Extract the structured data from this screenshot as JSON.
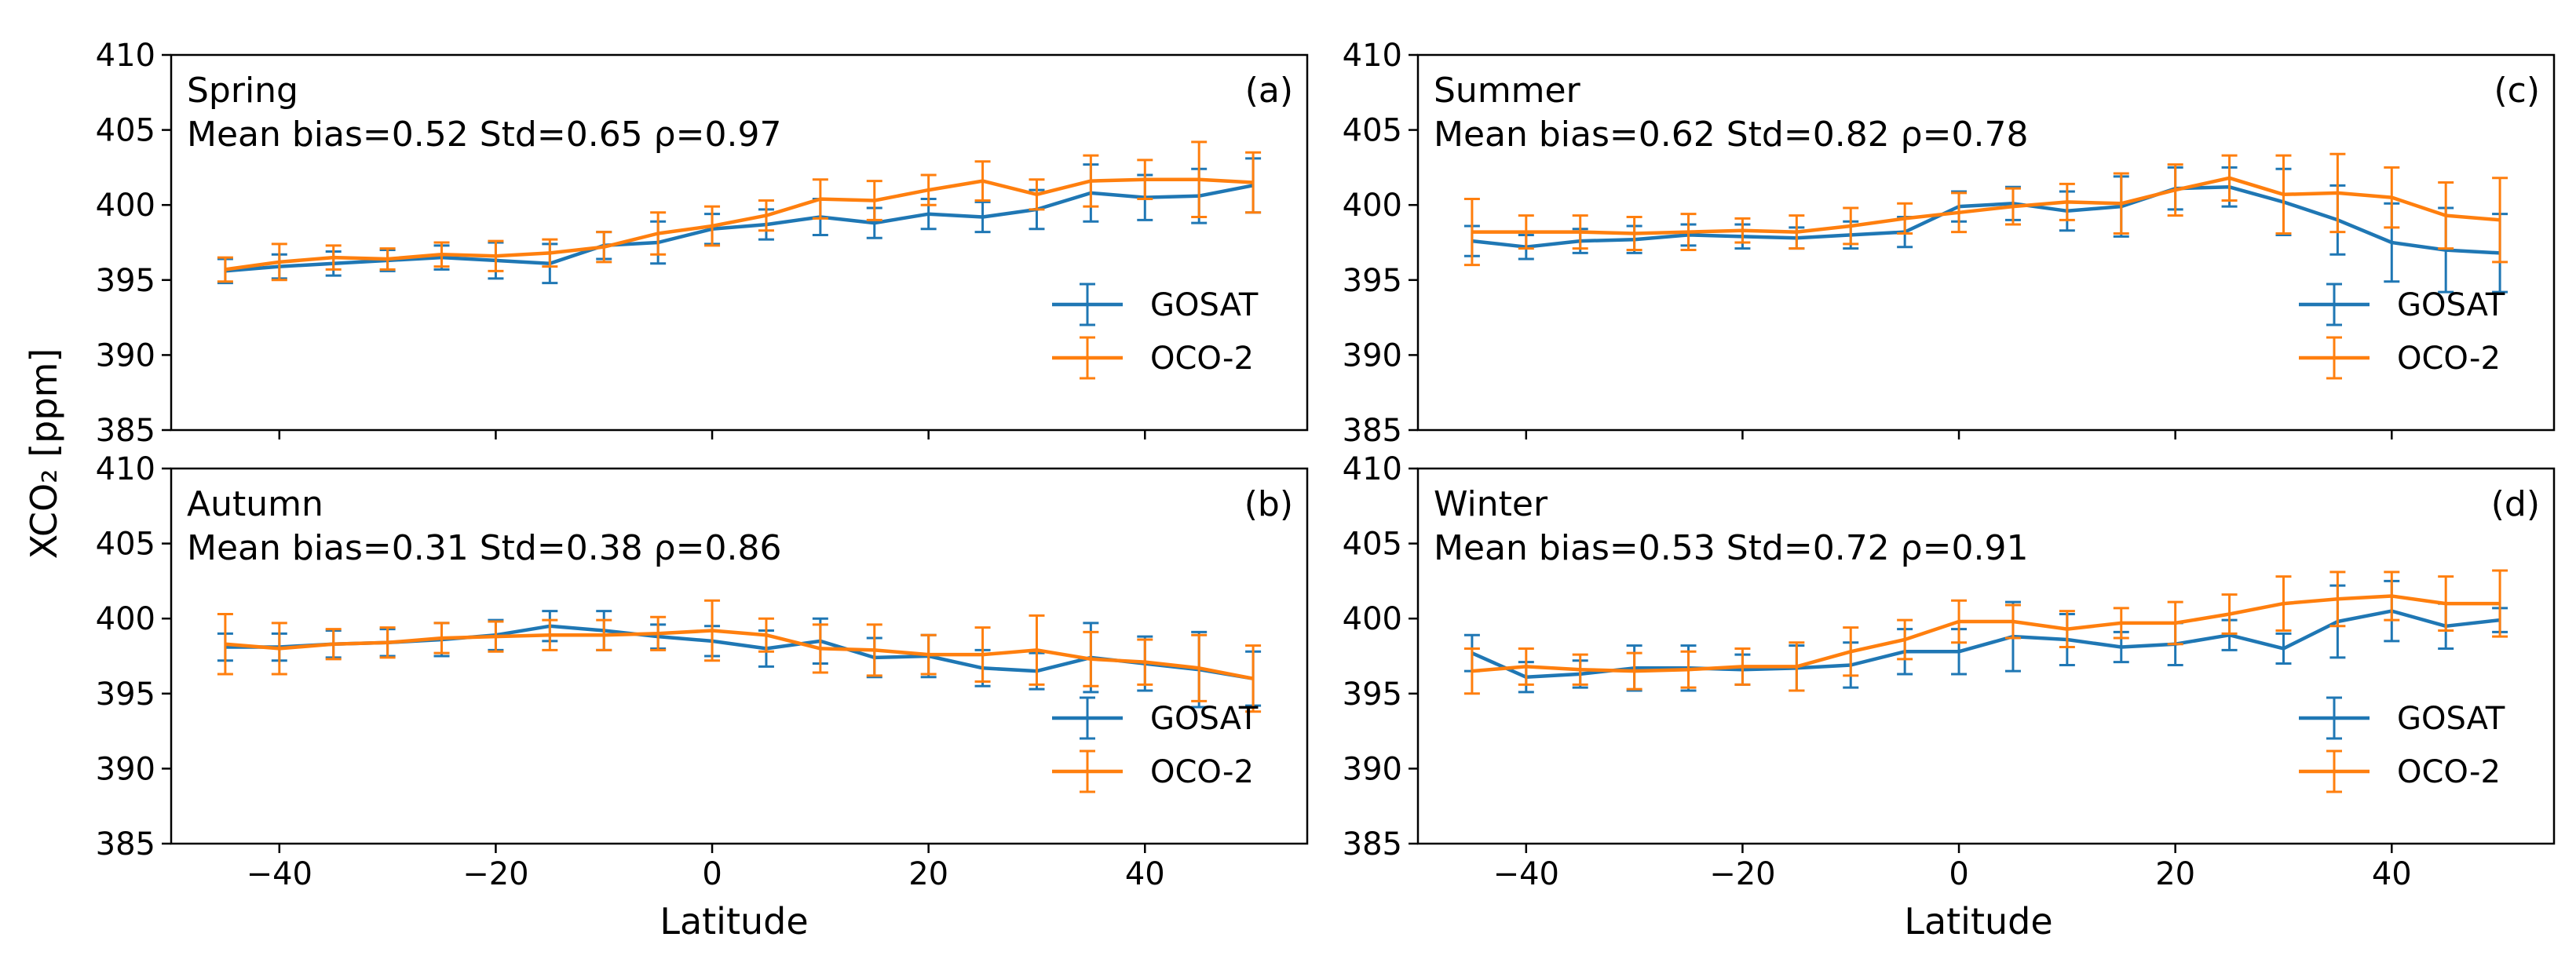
{
  "figure": {
    "ylabel": "XCO₂ [ppm]",
    "xlabel": "Latitude",
    "colors": {
      "GOSAT": "#1f77b4",
      "OCO-2": "#ff7f0e"
    }
  },
  "chart_data": [
    {
      "type": "line",
      "panel": "(a)",
      "season": "Spring",
      "stats": "Mean bias=0.52 Std=0.65 ρ=0.97",
      "xlim": [
        -50,
        55
      ],
      "ylim": [
        385,
        410
      ],
      "xticks": [
        -40,
        -20,
        0,
        20,
        40
      ],
      "yticks": [
        385,
        390,
        395,
        400,
        405,
        410
      ],
      "legend": "lower-right",
      "x": [
        -45,
        -40,
        -35,
        -30,
        -25,
        -20,
        -15,
        -10,
        -5,
        0,
        5,
        10,
        15,
        20,
        25,
        30,
        35,
        40,
        45,
        50
      ],
      "series": [
        {
          "name": "GOSAT",
          "values": [
            395.6,
            395.9,
            396.1,
            396.3,
            396.5,
            396.3,
            396.1,
            397.3,
            397.5,
            398.4,
            398.7,
            399.2,
            398.8,
            399.4,
            399.2,
            399.7,
            400.8,
            400.5,
            400.6,
            401.3
          ],
          "errors": [
            0.8,
            0.8,
            0.8,
            0.7,
            0.8,
            1.2,
            1.3,
            0.9,
            1.4,
            1.0,
            1.0,
            1.2,
            1.0,
            1.0,
            1.0,
            1.3,
            1.9,
            1.5,
            1.8,
            1.8
          ]
        },
        {
          "name": "OCO-2",
          "values": [
            395.7,
            396.2,
            396.5,
            396.4,
            396.7,
            396.6,
            396.8,
            397.2,
            398.1,
            398.6,
            399.3,
            400.4,
            400.3,
            401.0,
            401.6,
            400.7,
            401.6,
            401.7,
            401.7,
            401.5
          ],
          "errors": [
            0.8,
            1.2,
            0.8,
            0.7,
            0.8,
            1.0,
            0.9,
            1.0,
            1.4,
            1.3,
            1.0,
            1.3,
            1.3,
            1.0,
            1.3,
            1.0,
            1.7,
            1.3,
            2.5,
            2.0
          ]
        }
      ]
    },
    {
      "type": "line",
      "panel": "(c)",
      "season": "Summer",
      "stats": "Mean bias=0.62 Std=0.82 ρ=0.78",
      "xlim": [
        -50,
        55
      ],
      "ylim": [
        385,
        410
      ],
      "xticks": [
        -40,
        -20,
        0,
        20,
        40
      ],
      "yticks": [
        385,
        390,
        395,
        400,
        405,
        410
      ],
      "legend": "lower-right",
      "x": [
        -45,
        -40,
        -35,
        -30,
        -25,
        -20,
        -15,
        -10,
        -5,
        0,
        5,
        10,
        15,
        20,
        25,
        30,
        35,
        40,
        45,
        50
      ],
      "series": [
        {
          "name": "GOSAT",
          "values": [
            397.6,
            397.2,
            397.6,
            397.7,
            398.0,
            397.9,
            397.8,
            398.0,
            398.2,
            399.9,
            400.1,
            399.6,
            399.9,
            401.1,
            401.2,
            400.2,
            399.0,
            397.5,
            397.0,
            396.8
          ],
          "errors": [
            1.0,
            0.8,
            0.8,
            0.9,
            0.7,
            0.8,
            0.7,
            0.9,
            1.0,
            1.0,
            1.1,
            1.3,
            2.0,
            1.4,
            1.3,
            2.2,
            2.3,
            2.6,
            2.8,
            2.6
          ]
        },
        {
          "name": "OCO-2",
          "values": [
            398.2,
            398.2,
            398.2,
            398.1,
            398.2,
            398.3,
            398.2,
            398.6,
            399.1,
            399.5,
            399.9,
            400.2,
            400.1,
            401.0,
            401.8,
            400.7,
            400.8,
            400.5,
            399.3,
            399.0
          ],
          "errors": [
            2.2,
            1.1,
            1.1,
            1.1,
            1.2,
            0.8,
            1.1,
            1.2,
            1.0,
            1.3,
            1.2,
            1.2,
            2.0,
            1.7,
            1.5,
            2.6,
            2.6,
            2.0,
            2.2,
            2.8
          ]
        }
      ]
    },
    {
      "type": "line",
      "panel": "(b)",
      "season": "Autumn",
      "stats": "Mean bias=0.31 Std=0.38 ρ=0.86",
      "xlim": [
        -50,
        55
      ],
      "ylim": [
        385,
        410
      ],
      "xticks": [
        -40,
        -20,
        0,
        20,
        40
      ],
      "yticks": [
        385,
        390,
        395,
        400,
        405,
        410
      ],
      "legend": "lower-right",
      "x": [
        -45,
        -40,
        -35,
        -30,
        -25,
        -20,
        -15,
        -10,
        -5,
        0,
        5,
        10,
        15,
        20,
        25,
        30,
        35,
        40,
        45,
        50
      ],
      "series": [
        {
          "name": "GOSAT",
          "values": [
            398.1,
            398.1,
            398.3,
            398.4,
            398.6,
            398.9,
            399.5,
            399.2,
            398.8,
            398.5,
            398.0,
            398.5,
            397.4,
            397.5,
            396.7,
            396.5,
            397.4,
            397.0,
            396.6,
            396.0
          ],
          "errors": [
            0.9,
            0.9,
            0.9,
            0.9,
            1.1,
            1.0,
            1.0,
            1.3,
            0.8,
            1.0,
            1.2,
            1.5,
            1.3,
            1.4,
            1.2,
            1.2,
            2.3,
            1.8,
            2.5,
            1.8
          ]
        },
        {
          "name": "OCO-2",
          "values": [
            398.3,
            398.0,
            398.3,
            398.4,
            398.7,
            398.8,
            398.9,
            398.9,
            399.0,
            399.2,
            398.9,
            398.0,
            397.9,
            397.6,
            397.6,
            397.9,
            397.3,
            397.1,
            396.7,
            396.0
          ],
          "errors": [
            2.0,
            1.7,
            1.0,
            1.0,
            1.0,
            1.0,
            1.0,
            1.0,
            1.1,
            2.0,
            1.1,
            1.6,
            1.7,
            1.3,
            1.8,
            2.3,
            1.8,
            1.5,
            2.2,
            2.2
          ]
        }
      ]
    },
    {
      "type": "line",
      "panel": "(d)",
      "season": "Winter",
      "stats": "Mean bias=0.53 Std=0.72 ρ=0.91",
      "xlim": [
        -50,
        55
      ],
      "ylim": [
        385,
        410
      ],
      "xticks": [
        -40,
        -20,
        0,
        20,
        40
      ],
      "yticks": [
        385,
        390,
        395,
        400,
        405,
        410
      ],
      "legend": "lower-right",
      "x": [
        -45,
        -40,
        -35,
        -30,
        -25,
        -20,
        -15,
        -10,
        -5,
        0,
        5,
        10,
        15,
        20,
        25,
        30,
        35,
        40,
        45,
        50
      ],
      "series": [
        {
          "name": "GOSAT",
          "values": [
            397.7,
            396.1,
            396.3,
            396.7,
            396.7,
            396.6,
            396.7,
            396.9,
            397.8,
            397.8,
            398.8,
            398.6,
            398.1,
            398.3,
            398.9,
            398.0,
            399.8,
            400.5,
            399.5,
            399.9
          ],
          "errors": [
            1.2,
            1.0,
            0.9,
            1.5,
            1.5,
            1.0,
            1.5,
            1.5,
            1.5,
            1.5,
            2.3,
            1.7,
            1.0,
            1.4,
            1.0,
            1.0,
            2.4,
            2.0,
            1.5,
            0.8
          ]
        },
        {
          "name": "OCO-2",
          "values": [
            396.5,
            396.8,
            396.6,
            396.5,
            396.6,
            396.8,
            396.8,
            397.8,
            398.6,
            399.8,
            399.8,
            399.3,
            399.7,
            399.7,
            400.3,
            401.0,
            401.3,
            401.5,
            401.0,
            401.0
          ],
          "errors": [
            1.5,
            1.2,
            1.0,
            1.2,
            1.2,
            1.2,
            1.6,
            1.6,
            1.3,
            1.4,
            1.1,
            1.2,
            1.0,
            1.4,
            1.3,
            1.8,
            1.8,
            1.6,
            1.8,
            2.2
          ]
        }
      ]
    }
  ]
}
